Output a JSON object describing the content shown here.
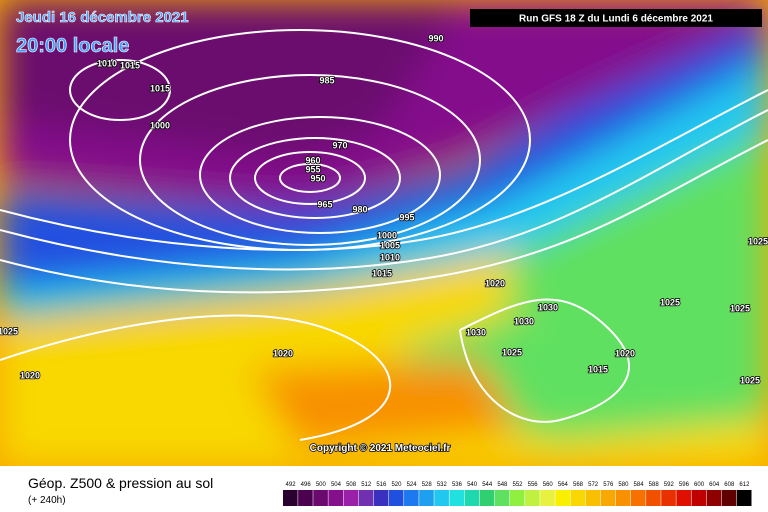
{
  "header": {
    "date": "Jeudi 16 décembre 2021",
    "time": "20:00 locale",
    "run": "Run GFS 18 Z du Lundi 6 décembre 2021"
  },
  "isobars": [
    990,
    1010,
    1015,
    1015,
    985,
    1000,
    970,
    960,
    955,
    950,
    965,
    980,
    995,
    1000,
    1005,
    1010,
    1015,
    1020,
    1030,
    1025,
    1030,
    1030,
    1025,
    1020,
    1020,
    1015,
    1025,
    1025,
    1020,
    1025,
    1025
  ],
  "copyright": "Copyright © 2021 Meteociel.fr",
  "legend": {
    "title": "Géop. Z500 & pression au sol",
    "subtitle": "(+ 240h)",
    "scale": [
      492,
      496,
      500,
      504,
      508,
      512,
      516,
      520,
      524,
      528,
      532,
      536,
      540,
      544,
      548,
      552,
      556,
      560,
      564,
      568,
      572,
      576,
      580,
      584,
      588,
      592,
      596,
      600,
      604,
      608,
      612
    ],
    "colors": [
      "#2a0030",
      "#4b0050",
      "#6a0a6e",
      "#84108c",
      "#9a20a8",
      "#7030b0",
      "#3a30c0",
      "#2050e0",
      "#1e78f0",
      "#1ea0f0",
      "#20c8f0",
      "#20e0e0",
      "#20d8b0",
      "#30d070",
      "#60e060",
      "#90f040",
      "#c0f040",
      "#e8f040",
      "#f8f000",
      "#f8d800",
      "#f8c000",
      "#f8a800",
      "#f89000",
      "#f87000",
      "#f05000",
      "#e83000",
      "#e01000",
      "#c00000",
      "#900000",
      "#600000",
      "#000000"
    ]
  }
}
